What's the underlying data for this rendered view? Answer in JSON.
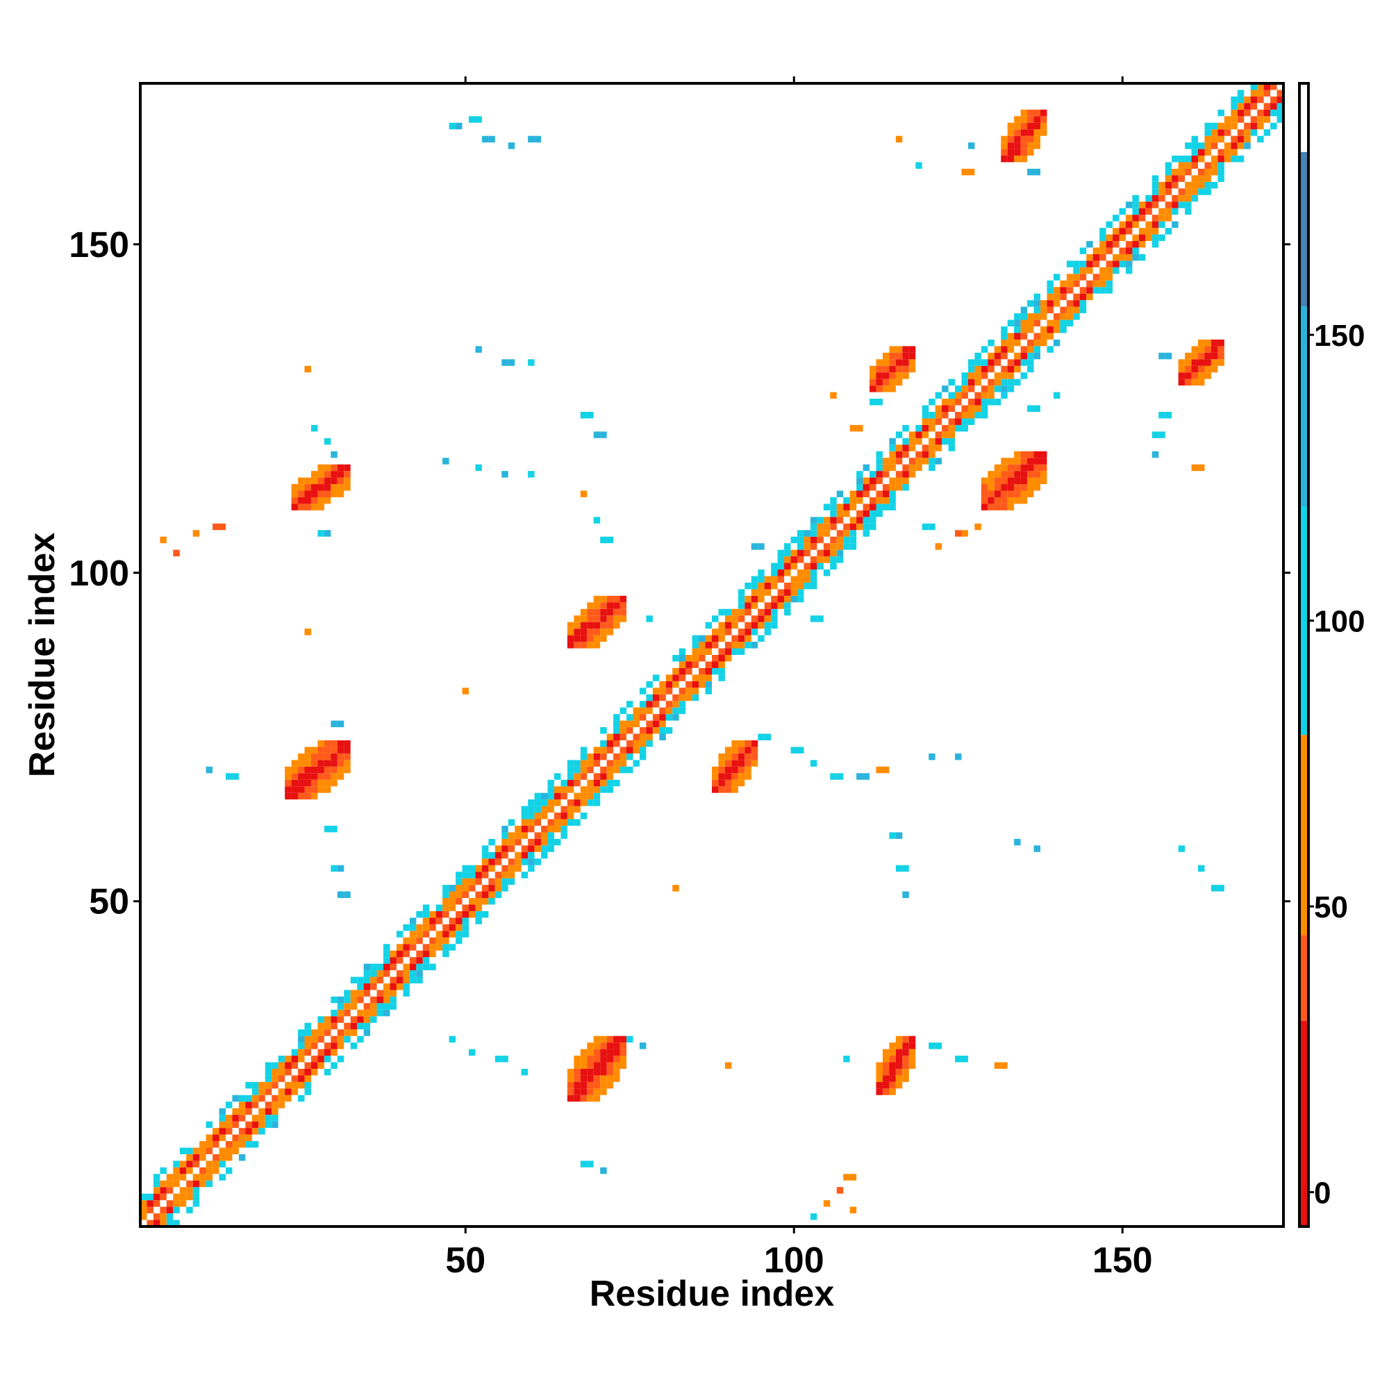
{
  "chart_data": {
    "type": "heatmap",
    "title": "",
    "xlabel": "Residue index",
    "ylabel": "Residue index",
    "xlim": [
      0.5,
      174.5
    ],
    "ylim": [
      0.5,
      174.5
    ],
    "x_ticks": [
      50,
      100,
      150
    ],
    "y_ticks": [
      50,
      100,
      150
    ],
    "colorbar": {
      "ticks": [
        0,
        50,
        100,
        150
      ],
      "range": [
        -6,
        194
      ],
      "bands": [
        {
          "from": -6,
          "to": 30,
          "color": "#e81010"
        },
        {
          "from": 30,
          "to": 45,
          "color": "#ff5a1a"
        },
        {
          "from": 45,
          "to": 80,
          "color": "#ff8c00"
        },
        {
          "from": 80,
          "to": 120,
          "color": "#14d2e6"
        },
        {
          "from": 120,
          "to": 155,
          "color": "#2ab4dc"
        },
        {
          "from": 155,
          "to": 182,
          "color": "#4682b4"
        },
        {
          "from": 182,
          "to": 194,
          "color": "#ffffff"
        }
      ]
    },
    "diagonal": {
      "from": 1,
      "to": 174
    },
    "value_note_colors": {
      "red": "#e81010",
      "orange_red": "#ff5a1a",
      "orange": "#ff8c00",
      "cyan": "#14d2e6",
      "sky": "#2ab4dc",
      "steel": "#4682b4"
    },
    "contact_patches": [
      {
        "x": [
          24,
          32
        ],
        "y": [
          110,
          116
        ],
        "value": 10
      },
      {
        "x": [
          23,
          32
        ],
        "y": [
          66,
          74
        ],
        "value": 10
      },
      {
        "x": [
          66,
          74
        ],
        "y": [
          20,
          29
        ],
        "value": 10
      },
      {
        "x": [
          66,
          74
        ],
        "y": [
          89,
          96
        ],
        "value": 10
      },
      {
        "x": [
          88,
          94
        ],
        "y": [
          67,
          74
        ],
        "value": 10
      },
      {
        "x": [
          113,
          118
        ],
        "y": [
          21,
          29
        ],
        "value": 10
      },
      {
        "x": [
          112,
          118
        ],
        "y": [
          128,
          134
        ],
        "value": 10
      },
      {
        "x": [
          129,
          138
        ],
        "y": [
          110,
          118
        ],
        "value": 10
      },
      {
        "x": [
          132,
          138
        ],
        "y": [
          163,
          170
        ],
        "value": 10
      },
      {
        "x": [
          159,
          165
        ],
        "y": [
          129,
          135
        ],
        "value": 10
      }
    ],
    "scattered_contacts": [
      {
        "x": 48,
        "y": 168,
        "value": 115
      },
      {
        "x": 51,
        "y": 169,
        "value": 100
      },
      {
        "x": 53,
        "y": 166,
        "value": 130
      },
      {
        "x": 57,
        "y": 165,
        "value": 125
      },
      {
        "x": 60,
        "y": 166,
        "value": 140
      },
      {
        "x": 52,
        "y": 134,
        "value": 125
      },
      {
        "x": 56,
        "y": 132,
        "value": 140
      },
      {
        "x": 60,
        "y": 132,
        "value": 115
      },
      {
        "x": 47,
        "y": 117,
        "value": 120
      },
      {
        "x": 52,
        "y": 116,
        "value": 110
      },
      {
        "x": 56,
        "y": 115,
        "value": 125
      },
      {
        "x": 60,
        "y": 115,
        "value": 110
      },
      {
        "x": 26,
        "y": 131,
        "value": 60
      },
      {
        "x": 27,
        "y": 122,
        "value": 110
      },
      {
        "x": 29,
        "y": 120,
        "value": 105
      },
      {
        "x": 30,
        "y": 118,
        "value": 140
      },
      {
        "x": 28,
        "y": 106,
        "value": 115
      },
      {
        "x": 26,
        "y": 91,
        "value": 55
      },
      {
        "x": 30,
        "y": 77,
        "value": 130
      },
      {
        "x": 29,
        "y": 61,
        "value": 110
      },
      {
        "x": 30,
        "y": 55,
        "value": 115
      },
      {
        "x": 31,
        "y": 51,
        "value": 130
      },
      {
        "x": 11,
        "y": 70,
        "value": 125
      },
      {
        "x": 14,
        "y": 69,
        "value": 100
      },
      {
        "x": 4,
        "y": 105,
        "value": 55
      },
      {
        "x": 6,
        "y": 103,
        "value": 40
      },
      {
        "x": 9,
        "y": 106,
        "value": 60
      },
      {
        "x": 12,
        "y": 107,
        "value": 30
      },
      {
        "x": 48,
        "y": 29,
        "value": 110
      },
      {
        "x": 51,
        "y": 27,
        "value": 100
      },
      {
        "x": 55,
        "y": 26,
        "value": 110
      },
      {
        "x": 59,
        "y": 24,
        "value": 115
      },
      {
        "x": 68,
        "y": 124,
        "value": 110
      },
      {
        "x": 70,
        "y": 121,
        "value": 125
      },
      {
        "x": 68,
        "y": 112,
        "value": 60
      },
      {
        "x": 70,
        "y": 108,
        "value": 105
      },
      {
        "x": 71,
        "y": 105,
        "value": 95
      },
      {
        "x": 75,
        "y": 29,
        "value": 110
      },
      {
        "x": 77,
        "y": 28,
        "value": 125
      },
      {
        "x": 68,
        "y": 10,
        "value": 110
      },
      {
        "x": 71,
        "y": 9,
        "value": 125
      },
      {
        "x": 50,
        "y": 82,
        "value": 55
      },
      {
        "x": 82,
        "y": 52,
        "value": 60
      },
      {
        "x": 90,
        "y": 25,
        "value": 60
      },
      {
        "x": 94,
        "y": 104,
        "value": 125
      },
      {
        "x": 103,
        "y": 93,
        "value": 110
      },
      {
        "x": 78,
        "y": 93,
        "value": 110
      },
      {
        "x": 95,
        "y": 75,
        "value": 110
      },
      {
        "x": 100,
        "y": 73,
        "value": 110
      },
      {
        "x": 103,
        "y": 71,
        "value": 95
      },
      {
        "x": 106,
        "y": 69,
        "value": 110
      },
      {
        "x": 110,
        "y": 69,
        "value": 125
      },
      {
        "x": 113,
        "y": 70,
        "value": 60
      },
      {
        "x": 121,
        "y": 72,
        "value": 140
      },
      {
        "x": 125,
        "y": 72,
        "value": 130
      },
      {
        "x": 105,
        "y": 4,
        "value": 50
      },
      {
        "x": 107,
        "y": 6,
        "value": 30
      },
      {
        "x": 109,
        "y": 3,
        "value": 45
      },
      {
        "x": 108,
        "y": 8,
        "value": 60
      },
      {
        "x": 103,
        "y": 2,
        "value": 110
      },
      {
        "x": 106,
        "y": 127,
        "value": 55
      },
      {
        "x": 109,
        "y": 122,
        "value": 60
      },
      {
        "x": 112,
        "y": 126,
        "value": 105
      },
      {
        "x": 108,
        "y": 26,
        "value": 110
      },
      {
        "x": 121,
        "y": 28,
        "value": 105
      },
      {
        "x": 125,
        "y": 26,
        "value": 110
      },
      {
        "x": 131,
        "y": 25,
        "value": 60
      },
      {
        "x": 115,
        "y": 60,
        "value": 115
      },
      {
        "x": 116,
        "y": 55,
        "value": 110
      },
      {
        "x": 117,
        "y": 51,
        "value": 125
      },
      {
        "x": 134,
        "y": 59,
        "value": 140
      },
      {
        "x": 137,
        "y": 58,
        "value": 130
      },
      {
        "x": 159,
        "y": 58,
        "value": 115
      },
      {
        "x": 162,
        "y": 55,
        "value": 110
      },
      {
        "x": 164,
        "y": 52,
        "value": 105
      },
      {
        "x": 156,
        "y": 133,
        "value": 140
      },
      {
        "x": 156,
        "y": 124,
        "value": 110
      },
      {
        "x": 155,
        "y": 121,
        "value": 100
      },
      {
        "x": 155,
        "y": 118,
        "value": 135
      },
      {
        "x": 161,
        "y": 116,
        "value": 55
      },
      {
        "x": 116,
        "y": 166,
        "value": 60
      },
      {
        "x": 119,
        "y": 162,
        "value": 115
      },
      {
        "x": 126,
        "y": 161,
        "value": 45
      },
      {
        "x": 127,
        "y": 165,
        "value": 140
      },
      {
        "x": 136,
        "y": 161,
        "value": 130
      },
      {
        "x": 140,
        "y": 127,
        "value": 105
      },
      {
        "x": 136,
        "y": 125,
        "value": 110
      },
      {
        "x": 122,
        "y": 104,
        "value": 45
      },
      {
        "x": 125,
        "y": 106,
        "value": 40
      },
      {
        "x": 128,
        "y": 107,
        "value": 60
      },
      {
        "x": 120,
        "y": 107,
        "value": 110
      }
    ]
  }
}
